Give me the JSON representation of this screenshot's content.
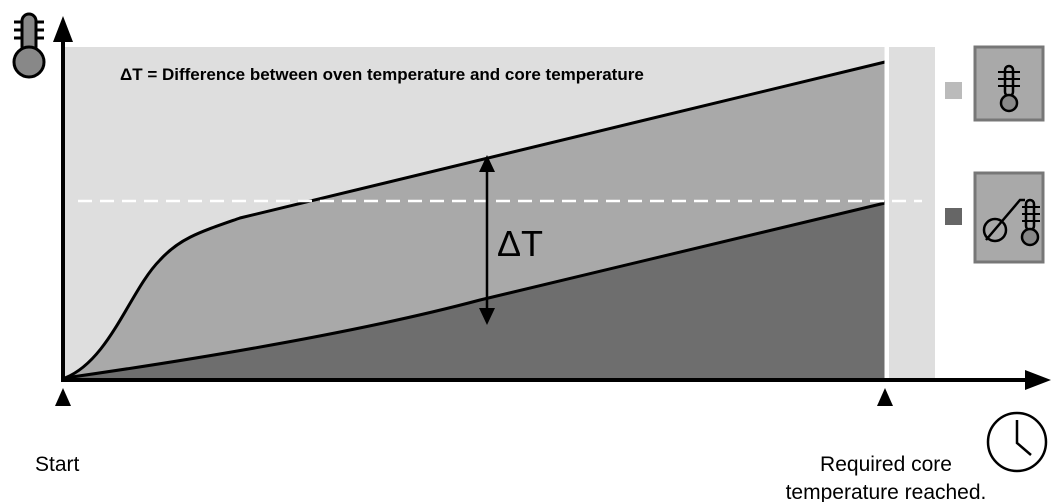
{
  "title": "ΔT = Difference between oven temperature and core temperature",
  "delta_label": "ΔT",
  "start_label": "Start",
  "end_label": [
    "Required core",
    "temperature reached."
  ]
}
